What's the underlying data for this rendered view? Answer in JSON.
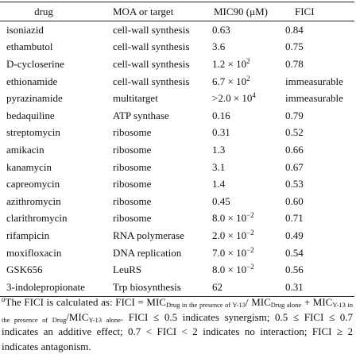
{
  "table": {
    "header": [
      "drug",
      "MOA or target",
      "MIC90 (μM)",
      "FICI"
    ],
    "rows": [
      [
        "isoniazid",
        "cell-wall synthesis",
        "0.63",
        "0.84"
      ],
      [
        "ethambutol",
        "cell-wall synthesis",
        "3.6",
        "0.75"
      ],
      [
        "D-cycloserine",
        "cell-wall synthesis",
        {
          "base": "1.2 × 10",
          "sup": "2"
        },
        "0.78"
      ],
      [
        "ethionamide",
        "cell-wall synthesis",
        {
          "base": "6.7 × 10",
          "sup": "2"
        },
        "immeasurable"
      ],
      [
        "pyrazinamide",
        "multitarget",
        {
          "base": ">2.0 × 10",
          "sup": "4"
        },
        "immeasurable"
      ],
      [
        "bedaquiline",
        "ATP synthase",
        "0.16",
        "0.79"
      ],
      [
        "streptomycin",
        "ribosome",
        "0.31",
        "0.52"
      ],
      [
        "amikacin",
        "ribosome",
        "1.3",
        "0.66"
      ],
      [
        "kanamycin",
        "ribosome",
        "3.1",
        "0.67"
      ],
      [
        "capreomycin",
        "ribosome",
        "1.4",
        "0.53"
      ],
      [
        "azithromycin",
        "ribosome",
        "0.45",
        "0.60"
      ],
      [
        "clarithromycin",
        "ribosome",
        {
          "base": "8.0 × 10",
          "sup": "−2"
        },
        "0.71"
      ],
      [
        "rifampicin",
        "RNA polymerase",
        {
          "base": "2.0 × 10",
          "sup": "−2"
        },
        "0.49"
      ],
      [
        "moxifloxacin",
        "DNA replication",
        {
          "base": "7.0 × 10",
          "sup": "−2"
        },
        "0.54"
      ],
      [
        "GSK656",
        "LeuRS",
        {
          "base": "8.0 × 10",
          "sup": "−2"
        },
        "0.56"
      ],
      [
        "3-indolepropionate",
        "Trp biosynthesis",
        "62",
        "0.31"
      ]
    ]
  },
  "footnote": {
    "marker": "a",
    "segments": [
      {
        "text": "The FICI is calculated as: FICI = MIC"
      },
      {
        "sub": "Drug in the presence of Y-13"
      },
      {
        "text": "/ MIC"
      },
      {
        "sub": "Drug alone"
      },
      {
        "text": " + MIC"
      },
      {
        "sub": "Y-13 in the presence of Drug"
      },
      {
        "text": "/MIC"
      },
      {
        "sub": "Y-13 alone"
      },
      {
        "text": ". FICI ≤ 0.5 indicates synergism; 0.5 ≤ FICI ≤ 0.7 indicates an additive effect; 0.7 < FICI < 2 indicates no interaction; FICI ≥ 2 indicates antagonism."
      }
    ]
  }
}
